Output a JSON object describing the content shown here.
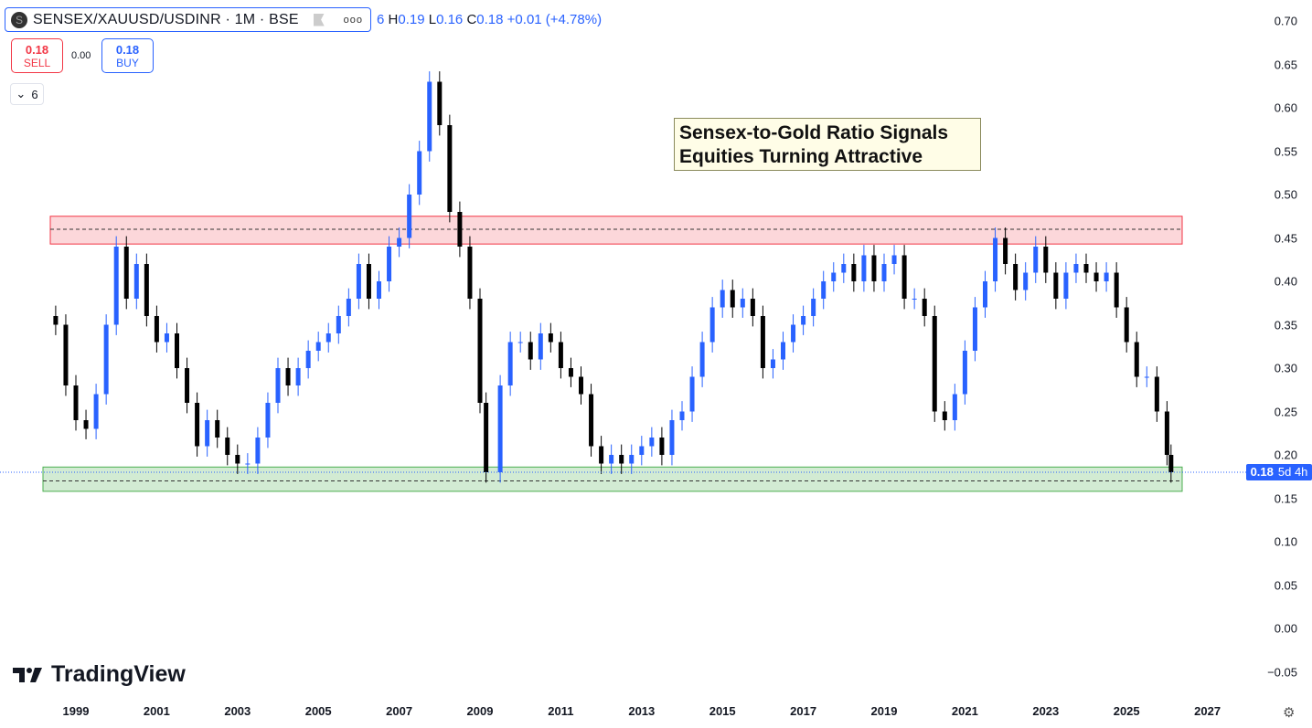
{
  "header": {
    "symbol_logo": "S",
    "title": "SENSEX/XAUUSD/USDINR · 1M · BSE",
    "more_icon": "ellipsis-icon",
    "ohlc": {
      "o_tail": "6",
      "h_label": "H",
      "h": "0.19",
      "l_label": "L",
      "l": "0.16",
      "c_label": "C",
      "c": "0.18",
      "change": "+0.01 (+4.78%)"
    }
  },
  "trade": {
    "sell_price": "0.18",
    "sell_label": "SELL",
    "spread": "0.00",
    "buy_price": "0.18",
    "buy_label": "BUY"
  },
  "indicators_toggle": {
    "count": "6"
  },
  "annotation": {
    "line1": "Sensex-to-Gold Ratio Signals",
    "line2": "Equities Turning Attractive"
  },
  "last_price": {
    "value": "0.18",
    "countdown": "5d 4h"
  },
  "brand": "TradingView",
  "colors": {
    "up": "#2962ff",
    "down": "#000000",
    "resistance_zone": "#f23645",
    "support_zone": "#4caf50"
  },
  "chart_data": {
    "type": "candlestick",
    "title": "",
    "y_ticks": [
      "0.70",
      "0.65",
      "0.60",
      "0.55",
      "0.50",
      "0.45",
      "0.40",
      "0.35",
      "0.30",
      "0.25",
      "0.20",
      "0.15",
      "0.10",
      "0.05",
      "0.00",
      "−0.05"
    ],
    "x_ticks": [
      "1999",
      "2001",
      "2003",
      "2005",
      "2007",
      "2009",
      "2011",
      "2013",
      "2015",
      "2017",
      "2019",
      "2021",
      "2023",
      "2025",
      "2027"
    ],
    "ylim": [
      -0.07,
      0.72
    ],
    "xlim": [
      1998.2,
      2028.2
    ],
    "zones": [
      {
        "name": "resistance",
        "from": 1998.6,
        "to": 2026.5,
        "low": 0.443,
        "high": 0.475,
        "mid": 0.46
      },
      {
        "name": "support",
        "from": 1998.4,
        "to": 2026.5,
        "low": 0.158,
        "high": 0.186,
        "mid": 0.17
      }
    ],
    "last_value": 0.18,
    "x": [
      1998.5,
      1998.75,
      1999,
      1999.25,
      1999.5,
      1999.75,
      2000,
      2000.25,
      2000.5,
      2000.75,
      2001,
      2001.25,
      2001.5,
      2001.75,
      2002,
      2002.25,
      2002.5,
      2002.75,
      2003,
      2003.25,
      2003.5,
      2003.75,
      2004,
      2004.25,
      2004.5,
      2004.75,
      2005,
      2005.25,
      2005.5,
      2005.75,
      2006,
      2006.25,
      2006.5,
      2006.75,
      2007,
      2007.25,
      2007.5,
      2007.75,
      2008,
      2008.25,
      2008.5,
      2008.75,
      2009,
      2009.15,
      2009.5,
      2009.75,
      2010,
      2010.25,
      2010.5,
      2010.75,
      2011,
      2011.25,
      2011.5,
      2011.75,
      2012,
      2012.25,
      2012.5,
      2012.75,
      2013,
      2013.25,
      2013.5,
      2013.75,
      2014,
      2014.25,
      2014.5,
      2014.75,
      2015,
      2015.25,
      2015.5,
      2015.75,
      2016,
      2016.25,
      2016.5,
      2016.75,
      2017,
      2017.25,
      2017.5,
      2017.75,
      2018,
      2018.25,
      2018.5,
      2018.75,
      2019,
      2019.25,
      2019.5,
      2019.75,
      2020,
      2020.25,
      2020.5,
      2020.75,
      2021,
      2021.25,
      2021.5,
      2021.75,
      2022,
      2022.25,
      2022.5,
      2022.75,
      2023,
      2023.25,
      2023.5,
      2023.75,
      2024,
      2024.25,
      2024.5,
      2024.75,
      2025,
      2025.25,
      2025.5,
      2025.75,
      2026,
      2026.1
    ],
    "close": [
      0.35,
      0.28,
      0.24,
      0.23,
      0.27,
      0.35,
      0.44,
      0.38,
      0.42,
      0.36,
      0.33,
      0.34,
      0.3,
      0.26,
      0.21,
      0.24,
      0.22,
      0.2,
      0.19,
      0.19,
      0.22,
      0.26,
      0.3,
      0.28,
      0.3,
      0.32,
      0.33,
      0.34,
      0.36,
      0.38,
      0.42,
      0.38,
      0.4,
      0.44,
      0.45,
      0.5,
      0.55,
      0.63,
      0.58,
      0.48,
      0.44,
      0.38,
      0.26,
      0.18,
      0.28,
      0.33,
      0.33,
      0.31,
      0.34,
      0.33,
      0.3,
      0.29,
      0.27,
      0.21,
      0.19,
      0.2,
      0.19,
      0.2,
      0.21,
      0.22,
      0.2,
      0.24,
      0.25,
      0.29,
      0.33,
      0.37,
      0.39,
      0.37,
      0.38,
      0.36,
      0.3,
      0.31,
      0.33,
      0.35,
      0.36,
      0.38,
      0.4,
      0.41,
      0.42,
      0.4,
      0.43,
      0.4,
      0.42,
      0.43,
      0.38,
      0.38,
      0.36,
      0.25,
      0.24,
      0.27,
      0.32,
      0.37,
      0.4,
      0.45,
      0.42,
      0.39,
      0.41,
      0.44,
      0.41,
      0.38,
      0.41,
      0.42,
      0.41,
      0.4,
      0.41,
      0.37,
      0.33,
      0.29,
      0.29,
      0.25,
      0.2,
      0.18
    ]
  }
}
